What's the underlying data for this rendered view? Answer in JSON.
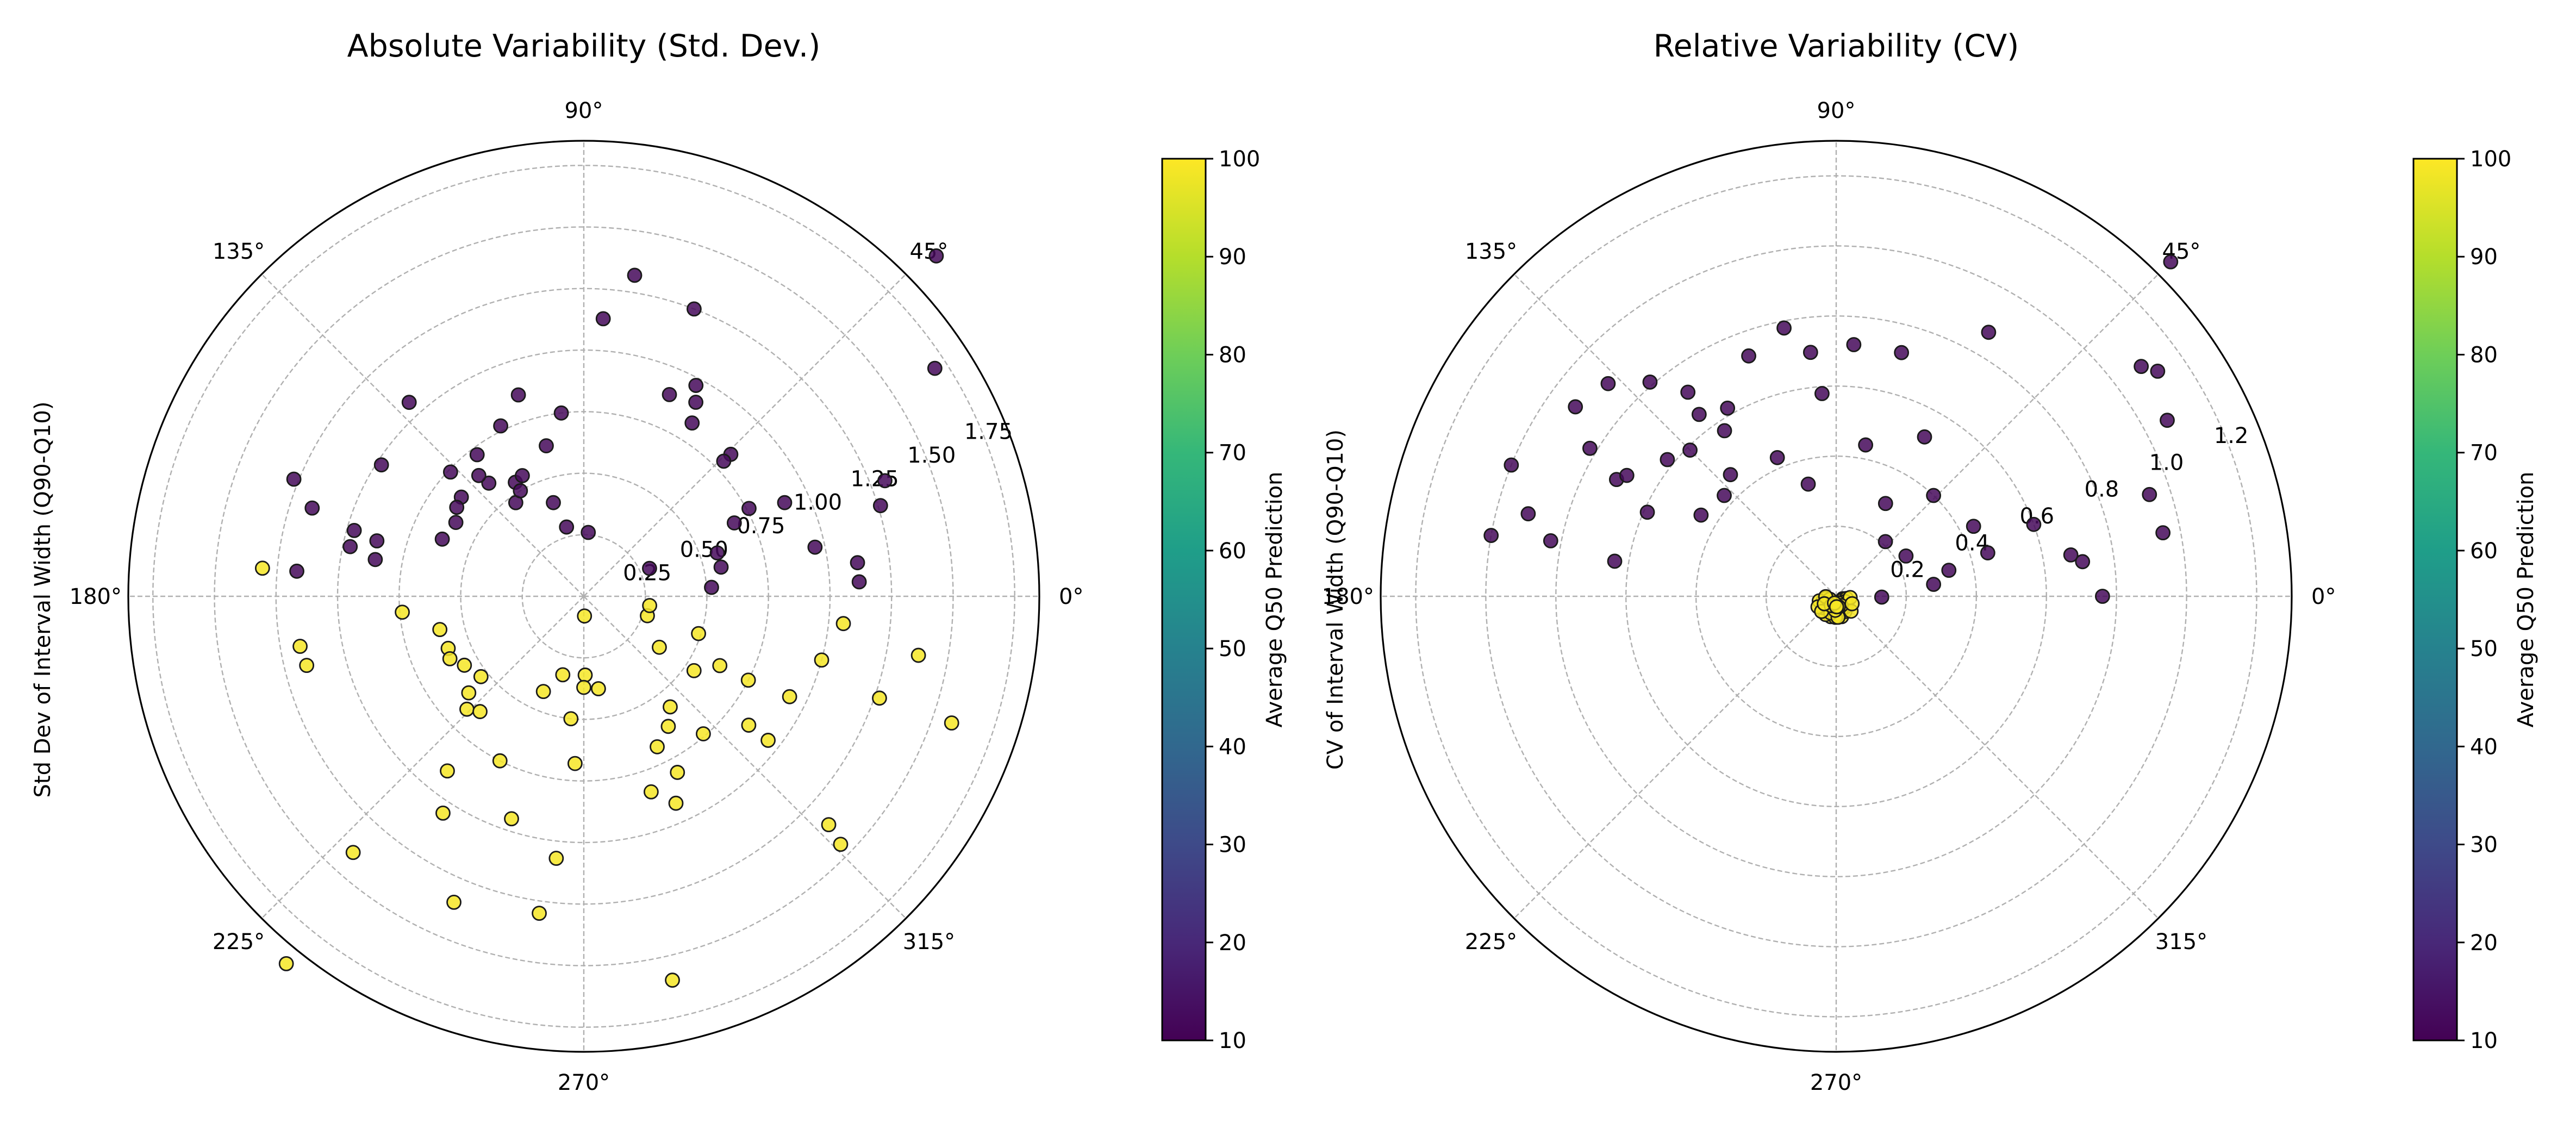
{
  "colors": {
    "low": "#440154",
    "high": "#fde725",
    "grid": "#b0b0b0",
    "viridis": [
      "#440154",
      "#482878",
      "#3e4a89",
      "#31688e",
      "#26828e",
      "#1f9e89",
      "#35b779",
      "#6ece58",
      "#b5de2b",
      "#fde725"
    ]
  },
  "chart_data": [
    {
      "type": "scatter",
      "projection": "polar",
      "title": "Absolute Variability (Std. Dev.)",
      "ylabel": "Std Dev of Interval Width (Q90-Q10)",
      "angle_unit": "degrees",
      "angle_ticks": [
        "0°",
        "45°",
        "90°",
        "135°",
        "180°",
        "225°",
        "270°",
        "315°"
      ],
      "r_ticks": [
        "0.25",
        "0.50",
        "0.75",
        "1.00",
        "1.25",
        "1.50",
        "1.75"
      ],
      "rlim": [
        0,
        1.85
      ],
      "grid": true,
      "colorbar": {
        "label": "Average Q50 Prediction",
        "ticks": [
          "10",
          "20",
          "30",
          "40",
          "50",
          "60",
          "70",
          "80",
          "90",
          "100"
        ],
        "range": [
          10,
          100
        ]
      },
      "series": [
        {
          "color_value": 12,
          "points": [
            {
              "theta": 81,
              "r": 1.32
            },
            {
              "theta": 86,
              "r": 1.13
            },
            {
              "theta": 69,
              "r": 1.25
            },
            {
              "theta": 62,
              "r": 0.97
            },
            {
              "theta": 58,
              "r": 0.83
            },
            {
              "theta": 44,
              "r": 1.99
            },
            {
              "theta": 33,
              "r": 1.7
            },
            {
              "theta": 17,
              "r": 1.26
            },
            {
              "theta": 12,
              "r": 0.96
            },
            {
              "theta": 7,
              "r": 1.12
            },
            {
              "theta": 3,
              "r": 1.12
            },
            {
              "theta": 21,
              "r": 1.31
            },
            {
              "theta": 25,
              "r": 0.9
            },
            {
              "theta": 28,
              "r": 0.76
            },
            {
              "theta": 44,
              "r": 0.83
            },
            {
              "theta": 60,
              "r": 0.91
            },
            {
              "theta": 67,
              "r": 0.89
            },
            {
              "theta": 44,
              "r": 0.79
            },
            {
              "theta": 26,
              "r": 0.68
            },
            {
              "theta": 18,
              "r": 0.57
            },
            {
              "theta": 12,
              "r": 0.57
            },
            {
              "theta": 4,
              "r": 0.52
            },
            {
              "theta": 97,
              "r": 0.75
            },
            {
              "theta": 104,
              "r": 0.63
            },
            {
              "theta": 108,
              "r": 0.86
            },
            {
              "theta": 116,
              "r": 0.77
            },
            {
              "theta": 121,
              "r": 0.54
            },
            {
              "theta": 126,
              "r": 0.47
            },
            {
              "theta": 130,
              "r": 0.6
            },
            {
              "theta": 127,
              "r": 0.72
            },
            {
              "theta": 117,
              "r": 0.55
            },
            {
              "theta": 108,
              "r": 0.4
            },
            {
              "theta": 104,
              "r": 0.29
            },
            {
              "theta": 86,
              "r": 0.26
            },
            {
              "theta": 121,
              "r": 0.5
            },
            {
              "theta": 131,
              "r": 0.65
            },
            {
              "theta": 137,
              "r": 0.74
            },
            {
              "theta": 141,
              "r": 0.64
            },
            {
              "theta": 145,
              "r": 0.63
            },
            {
              "theta": 150,
              "r": 0.6
            },
            {
              "theta": 158,
              "r": 0.62
            },
            {
              "theta": 132,
              "r": 1.06
            },
            {
              "theta": 147,
              "r": 0.98
            },
            {
              "theta": 158,
              "r": 1.27
            },
            {
              "theta": 164,
              "r": 0.97
            },
            {
              "theta": 165,
              "r": 0.87
            },
            {
              "theta": 170,
              "r": 0.86
            },
            {
              "theta": 168,
              "r": 0.97
            },
            {
              "theta": 175,
              "r": 1.17
            },
            {
              "theta": 162,
              "r": 1.16
            },
            {
              "theta": 23,
              "r": 0.29
            }
          ]
        },
        {
          "color_value": 99,
          "points": [
            {
              "theta": 190,
              "r": 1.17
            },
            {
              "theta": 194,
              "r": 1.16
            },
            {
              "theta": 185,
              "r": 0.74
            },
            {
              "theta": 193,
              "r": 0.6
            },
            {
              "theta": 201,
              "r": 0.59
            },
            {
              "theta": 205,
              "r": 0.6
            },
            {
              "theta": 210,
              "r": 0.56
            },
            {
              "theta": 218,
              "r": 0.53
            },
            {
              "theta": 220,
              "r": 0.61
            },
            {
              "theta": 224,
              "r": 0.66
            },
            {
              "theta": 228,
              "r": 0.63
            },
            {
              "theta": 232,
              "r": 0.9
            },
            {
              "theta": 237,
              "r": 1.05
            },
            {
              "theta": 243,
              "r": 0.75
            },
            {
              "theta": 252,
              "r": 0.95
            },
            {
              "theta": 264,
              "r": 1.07
            },
            {
              "theta": 267,
              "r": 0.68
            },
            {
              "theta": 271,
              "r": 0.32
            },
            {
              "theta": 279,
              "r": 0.38
            },
            {
              "theta": 270,
              "r": 0.37
            },
            {
              "theta": 264,
              "r": 0.5
            },
            {
              "theta": 247,
              "r": 0.42
            },
            {
              "theta": 255,
              "r": 0.33
            },
            {
              "theta": 283,
              "r": 1.6
            },
            {
              "theta": 228,
              "r": 1.4
            },
            {
              "theta": 231,
              "r": 1.92
            },
            {
              "theta": 247,
              "r": 1.35
            },
            {
              "theta": 262,
              "r": 1.3
            },
            {
              "theta": 289,
              "r": 0.84
            },
            {
              "theta": 294,
              "r": 0.92
            },
            {
              "theta": 298,
              "r": 0.81
            },
            {
              "theta": 296,
              "r": 0.68
            },
            {
              "theta": 303,
              "r": 0.63
            },
            {
              "theta": 308,
              "r": 0.57
            },
            {
              "theta": 311,
              "r": 0.74
            },
            {
              "theta": 322,
              "r": 0.85
            },
            {
              "theta": 326,
              "r": 0.54
            },
            {
              "theta": 326,
              "r": 0.37
            },
            {
              "theta": 343,
              "r": 0.27
            },
            {
              "theta": 352,
              "r": 0.27
            },
            {
              "theta": 342,
              "r": 0.49
            },
            {
              "theta": 333,
              "r": 0.62
            },
            {
              "theta": 333,
              "r": 0.75
            },
            {
              "theta": 322,
              "r": 0.95
            },
            {
              "theta": 334,
              "r": 0.93
            },
            {
              "theta": 345,
              "r": 1.0
            },
            {
              "theta": 354,
              "r": 1.06
            },
            {
              "theta": 341,
              "r": 1.27
            },
            {
              "theta": 350,
              "r": 1.38
            },
            {
              "theta": 316,
              "r": 1.45
            },
            {
              "theta": 317,
              "r": 1.36
            },
            {
              "theta": 341,
              "r": 1.58
            },
            {
              "theta": 175,
              "r": 1.31
            },
            {
              "theta": 272,
              "r": 0.08
            }
          ]
        }
      ]
    },
    {
      "type": "scatter",
      "projection": "polar",
      "title": "Relative Variability (CV)",
      "ylabel": "CV of Interval Width (Q90-Q10)",
      "angle_unit": "degrees",
      "angle_ticks": [
        "0°",
        "45°",
        "90°",
        "135°",
        "180°",
        "225°",
        "270°",
        "315°"
      ],
      "r_ticks": [
        "0.2",
        "0.4",
        "0.6",
        "0.8",
        "1.0",
        "1.2"
      ],
      "rlim": [
        0,
        1.3
      ],
      "grid": true,
      "colorbar": {
        "label": "Average Q50 Prediction",
        "ticks": [
          "10",
          "20",
          "30",
          "40",
          "50",
          "60",
          "70",
          "80",
          "90",
          "100"
        ],
        "range": [
          10,
          100
        ]
      },
      "series": [
        {
          "color_value": 12,
          "points": [
            {
              "theta": 45,
              "r": 1.35
            },
            {
              "theta": 35,
              "r": 1.12
            },
            {
              "theta": 28,
              "r": 1.07
            },
            {
              "theta": 18,
              "r": 0.94
            },
            {
              "theta": 0,
              "r": 0.76
            },
            {
              "theta": 60,
              "r": 0.87
            },
            {
              "theta": 75,
              "r": 0.72
            },
            {
              "theta": 86,
              "r": 0.72
            },
            {
              "theta": 96,
              "r": 0.7
            },
            {
              "theta": 101,
              "r": 0.78
            },
            {
              "theta": 110,
              "r": 0.73
            },
            {
              "theta": 120,
              "r": 0.62
            },
            {
              "theta": 124,
              "r": 0.57
            },
            {
              "theta": 127,
              "r": 0.65
            },
            {
              "theta": 131,
              "r": 0.81
            },
            {
              "theta": 137,
              "r": 0.89
            },
            {
              "theta": 144,
              "r": 0.92
            },
            {
              "theta": 149,
              "r": 0.82
            },
            {
              "theta": 152,
              "r": 0.71
            },
            {
              "theta": 156,
              "r": 0.59
            },
            {
              "theta": 158,
              "r": 1.0
            },
            {
              "theta": 165,
              "r": 0.91
            },
            {
              "theta": 171,
              "r": 0.64
            },
            {
              "theta": 169,
              "r": 0.83
            },
            {
              "theta": 170,
              "r": 1.0
            },
            {
              "theta": 149,
              "r": 0.45
            },
            {
              "theta": 138,
              "r": 0.43
            },
            {
              "theta": 141,
              "r": 0.62
            },
            {
              "theta": 126,
              "r": 0.72
            },
            {
              "theta": 113,
              "r": 0.43
            },
            {
              "theta": 104,
              "r": 0.33
            },
            {
              "theta": 94,
              "r": 0.58
            },
            {
              "theta": 79,
              "r": 0.44
            },
            {
              "theta": 61,
              "r": 0.52
            },
            {
              "theta": 62,
              "r": 0.3
            },
            {
              "theta": 46,
              "r": 0.4
            },
            {
              "theta": 30,
              "r": 0.23
            },
            {
              "theta": 13,
              "r": 0.33
            },
            {
              "theta": 16,
              "r": 0.45
            },
            {
              "theta": 20,
              "r": 0.6
            },
            {
              "theta": 7,
              "r": 0.28
            },
            {
              "theta": 359,
              "r": 0.13
            },
            {
              "theta": 48,
              "r": 0.21
            },
            {
              "theta": 10,
              "r": 0.68
            },
            {
              "theta": 8,
              "r": 0.71
            },
            {
              "theta": 27,
              "r": 0.44
            },
            {
              "theta": 131,
              "r": 0.46
            },
            {
              "theta": 135,
              "r": 0.59
            },
            {
              "theta": 150,
              "r": 0.69
            },
            {
              "theta": 37,
              "r": 1.09
            },
            {
              "theta": 11,
              "r": 0.95
            }
          ]
        },
        {
          "color_value": 99,
          "points": [
            {
              "theta": 261,
              "r": 0.03
            },
            {
              "theta": 275,
              "r": 0.04
            },
            {
              "theta": 290,
              "r": 0.03
            },
            {
              "theta": 305,
              "r": 0.02
            },
            {
              "theta": 231,
              "r": 0.04
            },
            {
              "theta": 245,
              "r": 0.05
            },
            {
              "theta": 255,
              "r": 0.06
            },
            {
              "theta": 285,
              "r": 0.06
            },
            {
              "theta": 300,
              "r": 0.05
            },
            {
              "theta": 215,
              "r": 0.03
            },
            {
              "theta": 200,
              "r": 0.04
            },
            {
              "theta": 190,
              "r": 0.03
            },
            {
              "theta": 340,
              "r": 0.02
            },
            {
              "theta": 320,
              "r": 0.04
            },
            {
              "theta": 250,
              "r": 0.03
            },
            {
              "theta": 265,
              "r": 0.05
            },
            {
              "theta": 240,
              "r": 0.06
            },
            {
              "theta": 280,
              "r": 0.05
            },
            {
              "theta": 230,
              "r": 0.02
            },
            {
              "theta": 270,
              "r": 0.02
            },
            {
              "theta": 220,
              "r": 0.05
            },
            {
              "theta": 195,
              "r": 0.05
            },
            {
              "theta": 310,
              "r": 0.04
            },
            {
              "theta": 325,
              "r": 0.02
            },
            {
              "theta": 258,
              "r": 0.04
            },
            {
              "theta": 292,
              "r": 0.04
            },
            {
              "theta": 244,
              "r": 0.02
            },
            {
              "theta": 279,
              "r": 0.02
            },
            {
              "theta": 268,
              "r": 0.06
            },
            {
              "theta": 210,
              "r": 0.06
            },
            {
              "theta": 348,
              "r": 0.03
            },
            {
              "theta": 330,
              "r": 0.03
            },
            {
              "theta": 236,
              "r": 0.04
            },
            {
              "theta": 262,
              "r": 0.02
            },
            {
              "theta": 288,
              "r": 0.02
            },
            {
              "theta": 205,
              "r": 0.02
            },
            {
              "theta": 182,
              "r": 0.03
            },
            {
              "theta": 315,
              "r": 0.06
            },
            {
              "theta": 355,
              "r": 0.04
            },
            {
              "theta": 252,
              "r": 0.05
            },
            {
              "theta": 275,
              "r": 0.06
            },
            {
              "theta": 298,
              "r": 0.03
            },
            {
              "theta": 226,
              "r": 0.06
            },
            {
              "theta": 266,
              "r": 0.04
            },
            {
              "theta": 242,
              "r": 0.03
            },
            {
              "theta": 282,
              "r": 0.03
            },
            {
              "theta": 212,
              "r": 0.04
            },
            {
              "theta": 335,
              "r": 0.05
            },
            {
              "theta": 256,
              "r": 0.02
            },
            {
              "theta": 272,
              "r": 0.03
            }
          ]
        }
      ]
    }
  ]
}
